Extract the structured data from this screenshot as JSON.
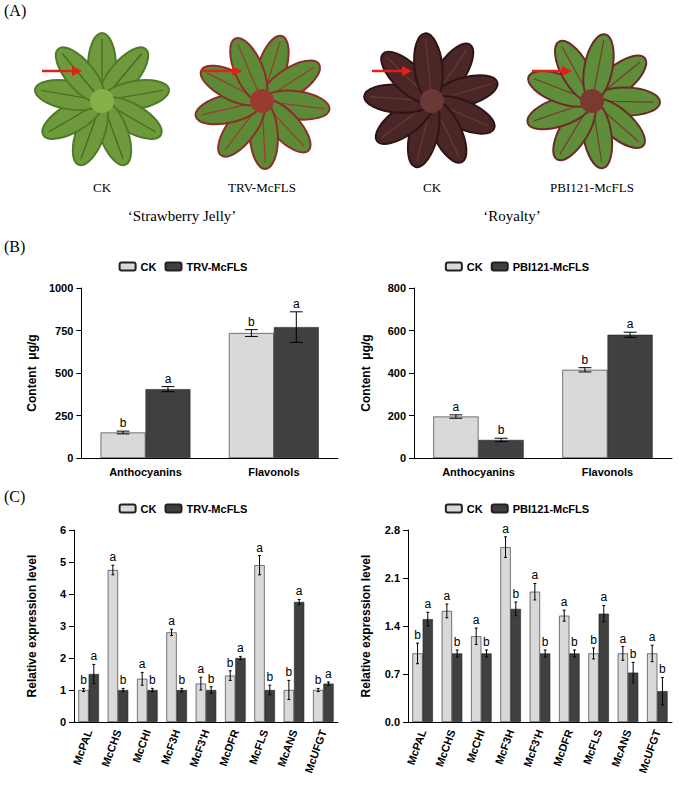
{
  "figure": {
    "panel_labels": [
      "(A)",
      "(B)",
      "(C)"
    ],
    "photos": [
      {
        "caption": "CK"
      },
      {
        "caption": "TRV-McFLS"
      },
      {
        "caption": "CK"
      },
      {
        "caption": "PBI121-McFLS"
      }
    ],
    "cultivars": [
      "‘Strawberry Jelly’",
      "‘Royalty’"
    ]
  },
  "chart_data": [
    {
      "type": "bar",
      "y_label": "Content  μg/g",
      "categories": [
        "Anthocyanins",
        "Flavonols"
      ],
      "series": [
        {
          "name": "CK",
          "color": "#d9d9d9",
          "values": [
            150,
            735
          ],
          "errors": [
            8,
            20
          ],
          "letters": [
            "b",
            "b"
          ]
        },
        {
          "name": "TRV-McFLS",
          "color": "#404040",
          "values": [
            405,
            770
          ],
          "errors": [
            15,
            90
          ],
          "letters": [
            "a",
            "a"
          ]
        }
      ],
      "ylim": [
        0,
        1000
      ],
      "yticks": [
        0,
        250,
        500,
        750,
        1000
      ],
      "grid": false,
      "legend": "top"
    },
    {
      "type": "bar",
      "y_label": "Content  μg/g",
      "categories": [
        "Anthocyanins",
        "Flavonols"
      ],
      "series": [
        {
          "name": "CK",
          "color": "#d9d9d9",
          "values": [
            195,
            415
          ],
          "errors": [
            8,
            10
          ],
          "letters": [
            "a",
            "b"
          ]
        },
        {
          "name": "PBI121-McFLS",
          "color": "#404040",
          "values": [
            85,
            580
          ],
          "errors": [
            8,
            12
          ],
          "letters": [
            "b",
            "a"
          ]
        }
      ],
      "ylim": [
        0,
        800
      ],
      "yticks": [
        0,
        200,
        400,
        600,
        800
      ],
      "grid": false,
      "legend": "top"
    },
    {
      "type": "bar",
      "y_label": "Relative expression level",
      "categories": [
        "McPAL",
        "McCHS",
        "McCHI",
        "McF3H",
        "McF3'H",
        "McDFR",
        "McFLS",
        "McANS",
        "McUFGT"
      ],
      "series": [
        {
          "name": "CK",
          "color": "#d9d9d9",
          "values": [
            1.0,
            4.75,
            1.35,
            2.8,
            1.2,
            1.45,
            4.9,
            1.0,
            1.0
          ],
          "errors": [
            0.05,
            0.15,
            0.2,
            0.1,
            0.2,
            0.15,
            0.3,
            0.3,
            0.05
          ],
          "letters": [
            "b",
            "a",
            "a",
            "a",
            "a",
            "b",
            "a",
            "b",
            "b"
          ]
        },
        {
          "name": "TRV-McFLS",
          "color": "#404040",
          "values": [
            1.5,
            1.0,
            1.0,
            1.0,
            1.0,
            2.0,
            1.0,
            3.75,
            1.2
          ],
          "errors": [
            0.3,
            0.05,
            0.05,
            0.05,
            0.1,
            0.05,
            0.15,
            0.08,
            0.05
          ],
          "letters": [
            "a",
            "b",
            "b",
            "b",
            "b",
            "a",
            "b",
            "a",
            "a"
          ]
        }
      ],
      "ylim": [
        0,
        6
      ],
      "yticks": [
        0,
        1,
        2,
        3,
        4,
        5,
        6
      ],
      "grid": false,
      "legend": "top"
    },
    {
      "type": "bar",
      "y_label": "Relative expression level",
      "categories": [
        "McPAL",
        "McCHS",
        "McCHI",
        "McF3H",
        "McF3'H",
        "McDFR",
        "McFLS",
        "McANS",
        "McUFGT"
      ],
      "series": [
        {
          "name": "CK",
          "color": "#d9d9d9",
          "values": [
            1.0,
            1.62,
            1.25,
            2.55,
            1.9,
            1.55,
            1.0,
            1.0,
            1.0
          ],
          "errors": [
            0.15,
            0.1,
            0.12,
            0.15,
            0.12,
            0.08,
            0.08,
            0.1,
            0.12
          ],
          "letters": [
            "b",
            "a",
            "a",
            "a",
            "a",
            "a",
            "b",
            "a",
            "a"
          ]
        },
        {
          "name": "PBI121-McFLS",
          "color": "#404040",
          "values": [
            1.5,
            1.0,
            1.0,
            1.65,
            1.0,
            1.0,
            1.58,
            0.72,
            0.45
          ],
          "errors": [
            0.1,
            0.05,
            0.05,
            0.1,
            0.05,
            0.05,
            0.12,
            0.15,
            0.2
          ],
          "letters": [
            "a",
            "b",
            "b",
            "b",
            "b",
            "b",
            "a",
            "b",
            "b"
          ]
        }
      ],
      "ylim": [
        0,
        2.8
      ],
      "yticks": [
        {
          "value": 0,
          "label": "0.0"
        },
        0.7,
        1.4,
        2.1,
        2.8
      ],
      "grid": false,
      "legend": "top"
    }
  ]
}
